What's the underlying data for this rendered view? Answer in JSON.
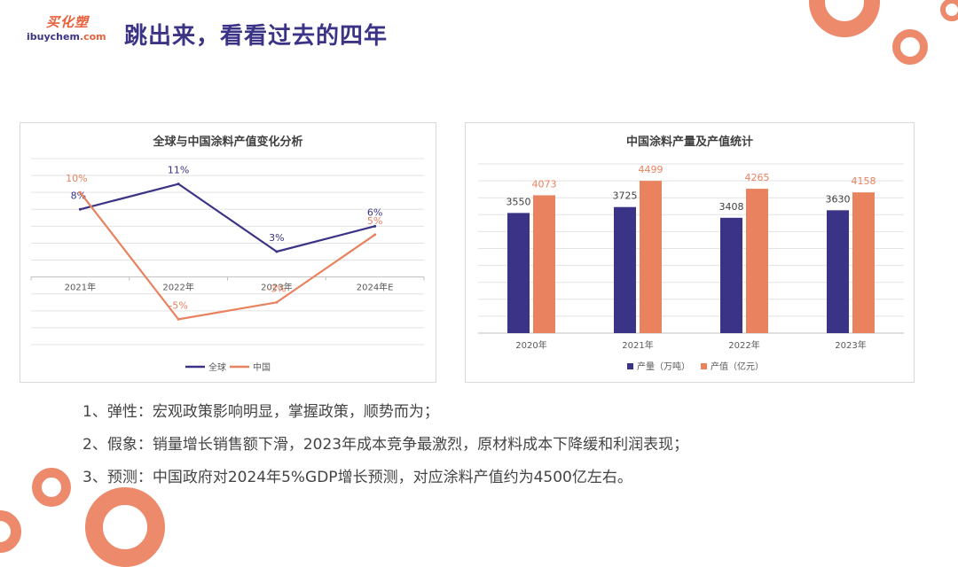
{
  "logo": {
    "cn": "买化塑",
    "en_main": "ibuychem",
    "en_suffix": ".com"
  },
  "page_title": "跳出来，看看过去的四年",
  "colors": {
    "navy": "#3b3486",
    "orange": "#e8825f",
    "accent": "#e8603c"
  },
  "chart_data": [
    {
      "type": "line",
      "title": "全球与中国涂料产值变化分析",
      "categories": [
        "2021年",
        "2022年",
        "2023年",
        "2024年E"
      ],
      "series": [
        {
          "name": "全球",
          "values": [
            8,
            11,
            3,
            6
          ],
          "labels": [
            "8%",
            "11%",
            "3%",
            "6%"
          ],
          "color": "#3b3486"
        },
        {
          "name": "中国",
          "values": [
            10,
            -5,
            -3,
            5
          ],
          "labels": [
            "10%",
            "-5%",
            "-3%",
            "5%"
          ],
          "color": "#e8825f"
        }
      ],
      "ylim": [
        -8,
        14
      ],
      "grid": true,
      "legend": "bottom"
    },
    {
      "type": "bar",
      "title": "中国涂料产量及产值统计",
      "categories": [
        "2020年",
        "2021年",
        "2022年",
        "2023年"
      ],
      "series": [
        {
          "name": "产量（万吨）",
          "values": [
            3550,
            3725,
            3408,
            3630
          ],
          "color": "#3b3486"
        },
        {
          "name": "产值（亿元）",
          "values": [
            4073,
            4499,
            4265,
            4158
          ],
          "color": "#e8825f"
        }
      ],
      "ylim": [
        0,
        5000
      ],
      "grid": true,
      "legend": "bottom"
    }
  ],
  "bullets": [
    "1、弹性：宏观政策影响明显，掌握政策，顺势而为；",
    "2、假象：销量增长销售额下滑，2023年成本竞争最激烈，原材料成本下降缓和利润表现；",
    "3、预测：中国政府对2024年5%GDP增长预测，对应涂料产值约为4500亿左右。"
  ]
}
